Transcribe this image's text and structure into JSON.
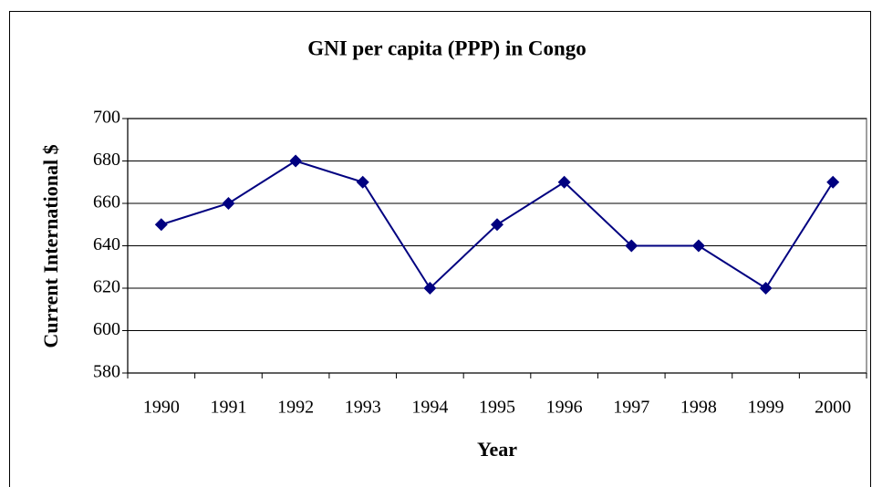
{
  "chart_data": {
    "type": "line",
    "title": "GNI per capita (PPP) in Congo",
    "x_label": "Year",
    "y_label": "Current International $",
    "categories": [
      "1990",
      "1991",
      "1992",
      "1993",
      "1994",
      "1995",
      "1996",
      "1997",
      "1998",
      "1999",
      "2000"
    ],
    "series": [
      {
        "name": "GNI per capita",
        "color": "#000080",
        "values": [
          650,
          660,
          680,
          670,
          620,
          650,
          670,
          640,
          640,
          620,
          670
        ]
      }
    ],
    "ylim": [
      580,
      700
    ],
    "yticks": [
      580,
      600,
      620,
      640,
      660,
      680,
      700
    ],
    "grid": true,
    "legend": false
  }
}
